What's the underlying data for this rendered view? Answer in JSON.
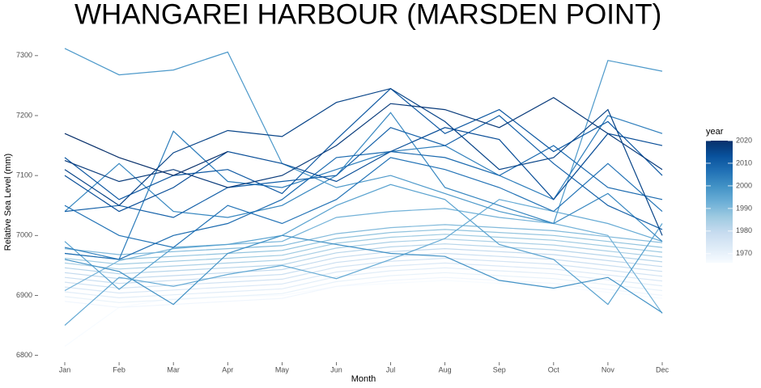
{
  "chart_data": {
    "type": "line",
    "title": "WHANGAREI HARBOUR (MARSDEN POINT)",
    "x_label": "Month",
    "y_label": "Relative Sea Level (mm)",
    "legend_title": "year",
    "categories": [
      "Jan",
      "Feb",
      "Mar",
      "Apr",
      "May",
      "Jun",
      "Jul",
      "Aug",
      "Sep",
      "Oct",
      "Nov",
      "Dec"
    ],
    "ylim": [
      6790,
      7320
    ],
    "yticks": [
      6800,
      6900,
      7000,
      7100,
      7200,
      7300
    ],
    "grid": false,
    "color_lim": [
      1966,
      2020
    ],
    "color_ticks": [
      1970,
      1980,
      1990,
      2000,
      2010,
      2020
    ],
    "colorscale": [
      "#f7fbff",
      "#deebf7",
      "#c6dbef",
      "#9ecae1",
      "#6baed6",
      "#4292c6",
      "#2171b5",
      "#08519c",
      "#08306b"
    ],
    "series": [
      {
        "year": 1966,
        "values": [
          6815,
          6880,
          6895,
          6898,
          6900,
          6915,
          6920,
          6925,
          6920,
          6915,
          6905,
          6895
        ]
      },
      {
        "year": 1968,
        "values": [
          6890,
          6880,
          6885,
          6890,
          6895,
          6915,
          6925,
          6930,
          6925,
          6920,
          6910,
          6900
        ]
      },
      {
        "year": 1970,
        "values": [
          6898,
          6888,
          6893,
          6898,
          6903,
          6923,
          6933,
          6938,
          6933,
          6928,
          6918,
          6908
        ]
      },
      {
        "year": 1972,
        "values": [
          6906,
          6896,
          6901,
          6906,
          6911,
          6931,
          6941,
          6946,
          6941,
          6936,
          6926,
          6916
        ]
      },
      {
        "year": 1974,
        "values": [
          6914,
          6904,
          6909,
          6914,
          6919,
          6939,
          6949,
          6954,
          6949,
          6944,
          6934,
          6924
        ]
      },
      {
        "year": 1976,
        "values": [
          6922,
          6912,
          6917,
          6922,
          6927,
          6947,
          6957,
          6962,
          6957,
          6952,
          6942,
          6932
        ]
      },
      {
        "year": 1978,
        "values": [
          6930,
          6920,
          6925,
          6930,
          6935,
          6955,
          6965,
          6970,
          6965,
          6960,
          6950,
          6940
        ]
      },
      {
        "year": 1980,
        "values": [
          6938,
          6928,
          6933,
          6938,
          6943,
          6963,
          6973,
          6978,
          6973,
          6968,
          6958,
          6948
        ]
      },
      {
        "year": 1982,
        "values": [
          6946,
          6936,
          6941,
          6946,
          6951,
          6971,
          6981,
          6986,
          6981,
          6976,
          6966,
          6956
        ]
      },
      {
        "year": 1984,
        "values": [
          6954,
          6944,
          6949,
          6954,
          6959,
          6979,
          6989,
          6994,
          6989,
          6984,
          6974,
          6964
        ]
      },
      {
        "year": 1986,
        "values": [
          6962,
          6952,
          6957,
          6962,
          6967,
          6987,
          6997,
          7002,
          6997,
          6992,
          6982,
          6972
        ]
      },
      {
        "year": 1988,
        "values": [
          6970,
          6960,
          6965,
          6970,
          6975,
          6995,
          7005,
          7010,
          7005,
          7000,
          6990,
          6980
        ]
      },
      {
        "year": 1990,
        "values": [
          6978,
          6968,
          6973,
          6978,
          6983,
          7003,
          7013,
          7018,
          7013,
          7008,
          6998,
          6988
        ]
      },
      {
        "year": 1992,
        "values": [
          6908,
          6958,
          6978,
          6985,
          6990,
          7030,
          7040,
          7045,
          7030,
          7020,
          7000,
          6870
        ]
      },
      {
        "year": 1994,
        "values": [
          6850,
          6930,
          6915,
          6935,
          6950,
          6928,
          6960,
          6995,
          7060,
          7040,
          7020,
          6990
        ]
      },
      {
        "year": 1996,
        "values": [
          6990,
          6910,
          6980,
          6985,
          7000,
          7050,
          7085,
          7060,
          6985,
          6960,
          6885,
          7020
        ]
      },
      {
        "year": 1998,
        "values": [
          7312,
          7268,
          7276,
          7306,
          7120,
          7080,
          7100,
          7070,
          7040,
          7020,
          7292,
          7274
        ]
      },
      {
        "year": 2000,
        "values": [
          6960,
          6940,
          6885,
          6970,
          7000,
          6985,
          6970,
          6965,
          6925,
          6912,
          6930,
          6871
        ]
      },
      {
        "year": 2002,
        "values": [
          7040,
          7120,
          7040,
          7030,
          7050,
          7100,
          7205,
          7080,
          7050,
          7020,
          7070,
          6990
        ]
      },
      {
        "year": 2004,
        "values": [
          6980,
          6960,
          7174,
          7090,
          7080,
          7110,
          7140,
          7150,
          7100,
          7060,
          7200,
          7170
        ]
      },
      {
        "year": 2006,
        "values": [
          7050,
          7000,
          6980,
          7050,
          7020,
          7060,
          7130,
          7110,
          7080,
          7040,
          7120,
          7040
        ]
      },
      {
        "year": 2008,
        "values": [
          6970,
          6960,
          7000,
          7020,
          7060,
          7130,
          7140,
          7130,
          7100,
          7150,
          7080,
          7060
        ]
      },
      {
        "year": 2010,
        "values": [
          7040,
          7050,
          7030,
          7080,
          7090,
          7100,
          7180,
          7150,
          7200,
          7120,
          7050,
          7010
        ]
      },
      {
        "year": 2012,
        "values": [
          7130,
          7060,
          7100,
          7110,
          7070,
          7160,
          7245,
          7170,
          7210,
          7140,
          7190,
          7100
        ]
      },
      {
        "year": 2014,
        "values": [
          7100,
          7040,
          7080,
          7140,
          7120,
          7090,
          7140,
          7180,
          7160,
          7060,
          7170,
          7150
        ]
      },
      {
        "year": 2016,
        "values": [
          7110,
          7050,
          7138,
          7175,
          7165,
          7222,
          7245,
          7190,
          7110,
          7130,
          7210,
          7000
        ]
      },
      {
        "year": 2018,
        "values": [
          7125,
          7090,
          7110,
          7080,
          7100,
          7150,
          7220,
          7210,
          7180,
          7230,
          7170,
          7110
        ]
      },
      {
        "year": 2020,
        "values": [
          7170,
          7130,
          7100,
          7140,
          null,
          null,
          null,
          null,
          null,
          null,
          null,
          null
        ]
      }
    ]
  }
}
